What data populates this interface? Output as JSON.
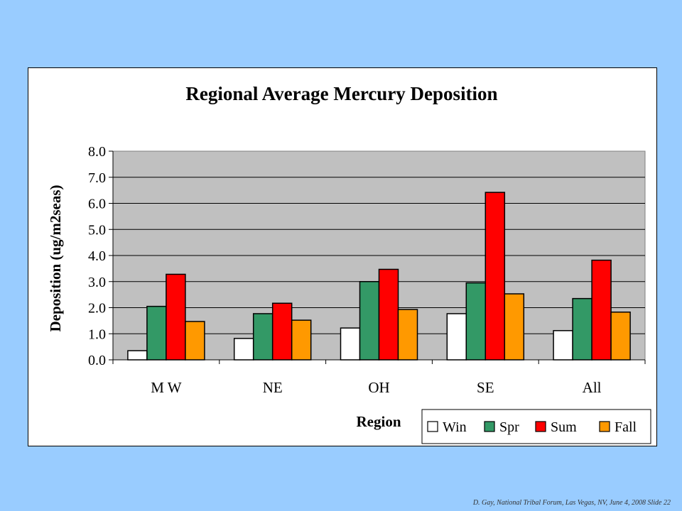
{
  "footer": "D. Gay, National Tribal Forum, Las Vegas, NV, June 4, 2008 Slide 22",
  "chart_data": {
    "type": "bar",
    "title": "Regional Average Mercury Deposition",
    "xlabel": "Region",
    "ylabel": "Deposition (ug/m2seas)",
    "categories": [
      "M W",
      "NE",
      "OH",
      "SE",
      "All"
    ],
    "ylim": [
      0,
      8
    ],
    "yticks": [
      "0.0",
      "1.0",
      "2.0",
      "3.0",
      "4.0",
      "5.0",
      "6.0",
      "7.0",
      "8.0"
    ],
    "grid": true,
    "legend_position": "bottom-right",
    "plot_background": "#c0c0c0",
    "series": [
      {
        "name": "Win",
        "color": "#ffffff",
        "values": [
          0.35,
          0.82,
          1.22,
          1.77,
          1.12
        ]
      },
      {
        "name": "Spr",
        "color": "#339966",
        "values": [
          2.05,
          1.77,
          3.0,
          2.95,
          2.35
        ]
      },
      {
        "name": "Sum",
        "color": "#ff0000",
        "values": [
          3.28,
          2.17,
          3.47,
          6.42,
          3.82
        ]
      },
      {
        "name": "Fall",
        "color": "#ff9900",
        "values": [
          1.47,
          1.52,
          1.93,
          2.53,
          1.83
        ]
      }
    ]
  }
}
